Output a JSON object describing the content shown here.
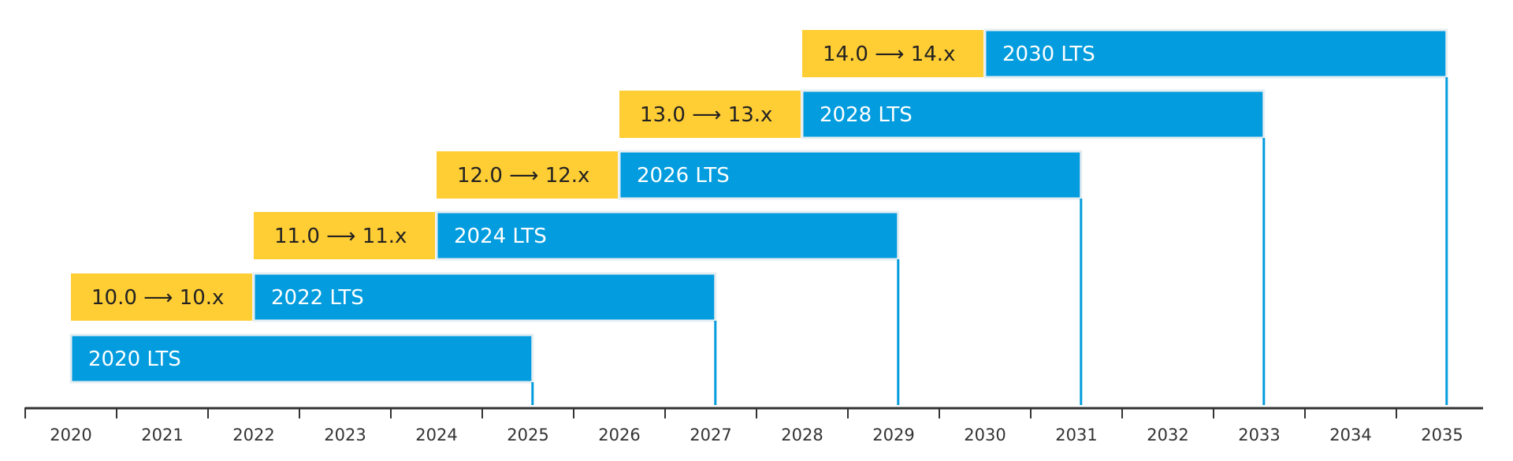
{
  "chart_data": {
    "type": "bar",
    "orientation": "horizontal-timeline",
    "x_axis": {
      "tick_labels": [
        "2020",
        "2021",
        "2022",
        "2023",
        "2024",
        "2025",
        "2026",
        "2027",
        "2028",
        "2029",
        "2030",
        "2031",
        "2032",
        "2033",
        "2034",
        "2035"
      ],
      "range": [
        2020,
        2036
      ]
    },
    "colors": {
      "pre_release": "#FFCD34",
      "lts": "#039CDE",
      "axis": "#333333",
      "lts_border": "#E6EEF2"
    },
    "releases": [
      {
        "pre_label": "",
        "pre_from": null,
        "lts_label": "2020 LTS",
        "lts_from": 2020,
        "lts_to": 2025.55
      },
      {
        "pre_label": "10.0 ⟶ 10.x",
        "pre_from": 2020,
        "lts_label": "2022 LTS",
        "lts_from": 2022,
        "lts_to": 2027.55
      },
      {
        "pre_label": "11.0 ⟶ 11.x",
        "pre_from": 2022,
        "lts_label": "2024 LTS",
        "lts_from": 2024,
        "lts_to": 2029.55
      },
      {
        "pre_label": "12.0 ⟶ 12.x",
        "pre_from": 2024,
        "lts_label": "2026 LTS",
        "lts_from": 2026,
        "lts_to": 2031.55
      },
      {
        "pre_label": "13.0 ⟶ 13.x",
        "pre_from": 2026,
        "lts_label": "2028 LTS",
        "lts_from": 2028,
        "lts_to": 2033.55
      },
      {
        "pre_label": "14.0 ⟶ 14.x",
        "pre_from": 2028,
        "lts_label": "2030 LTS",
        "lts_from": 2030,
        "lts_to": 2035.55
      }
    ]
  }
}
